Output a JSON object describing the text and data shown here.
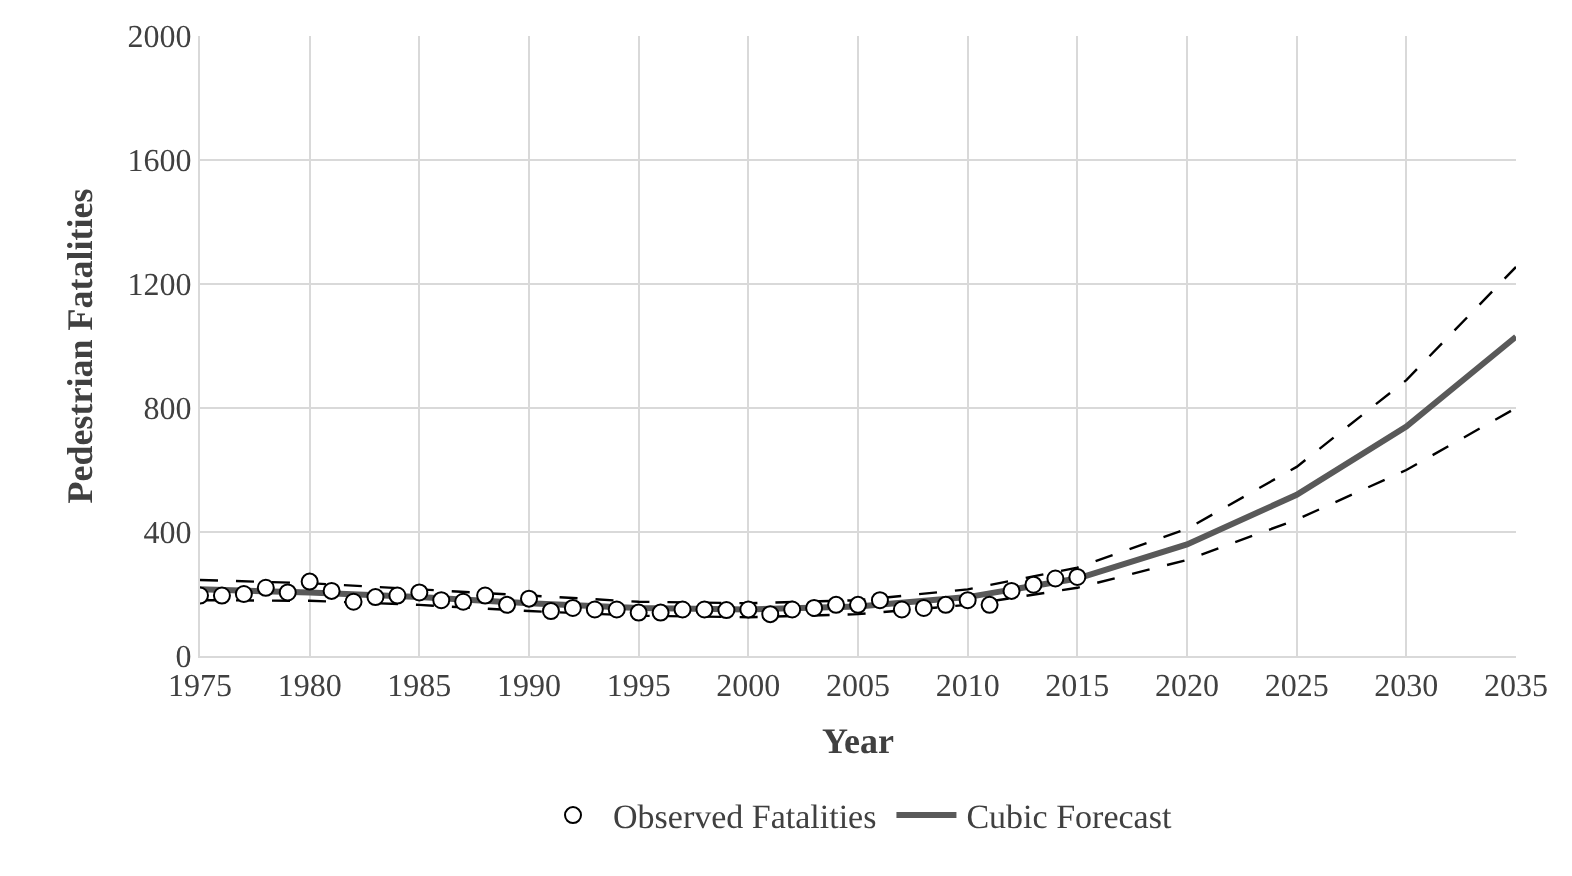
{
  "chart_data": {
    "type": "line",
    "xlabel": "Year",
    "ylabel": "Pedestrian Fatalities",
    "xlim": [
      1975,
      2035
    ],
    "xticks": [
      1975,
      1980,
      1985,
      1990,
      1995,
      2000,
      2005,
      2010,
      2015,
      2020,
      2025,
      2030,
      2035
    ],
    "ylim": [
      0,
      2000
    ],
    "yticks": [
      0,
      400,
      800,
      1200,
      1600,
      2000
    ],
    "grid": true,
    "legend": "bottom",
    "series": [
      {
        "name": "Observed Fatalities",
        "type": "scatter",
        "marker": "circle",
        "color": "#000000",
        "x": [
          1975,
          1976,
          1977,
          1978,
          1979,
          1980,
          1981,
          1982,
          1983,
          1984,
          1985,
          1986,
          1987,
          1988,
          1989,
          1990,
          1991,
          1992,
          1993,
          1994,
          1995,
          1996,
          1997,
          1998,
          1999,
          2000,
          2001,
          2002,
          2003,
          2004,
          2005,
          2006,
          2007,
          2008,
          2009,
          2010,
          2011,
          2012,
          2013,
          2014,
          2015
        ],
        "values": [
          195,
          195,
          200,
          220,
          205,
          240,
          210,
          175,
          190,
          195,
          205,
          180,
          175,
          195,
          165,
          185,
          145,
          155,
          150,
          150,
          140,
          140,
          150,
          150,
          148,
          150,
          135,
          150,
          155,
          165,
          165,
          180,
          150,
          155,
          165,
          180,
          165,
          210,
          230,
          250,
          255
        ]
      },
      {
        "name": "Cubic Forecast",
        "color": "#595959",
        "line_style": "solid",
        "x": [
          1975,
          1980,
          1985,
          1990,
          1995,
          2000,
          2005,
          2010,
          2015,
          2020,
          2025,
          2030,
          2035
        ],
        "values": [
          215,
          205,
          190,
          170,
          155,
          150,
          160,
          190,
          250,
          360,
          520,
          740,
          1030
        ]
      },
      {
        "color": "#000000",
        "line_style": "dashed",
        "x": [
          1975,
          1980,
          1985,
          1990,
          1995,
          2000,
          2005,
          2010,
          2015,
          2020,
          2025,
          2030,
          2035
        ],
        "values": [
          180,
          178,
          165,
          145,
          130,
          125,
          135,
          165,
          220,
          310,
          440,
          600,
          800
        ]
      },
      {
        "color": "#000000",
        "line_style": "dashed",
        "x": [
          1975,
          1980,
          1985,
          1990,
          1995,
          2000,
          2005,
          2010,
          2015,
          2020,
          2025,
          2030,
          2035
        ],
        "values": [
          245,
          235,
          215,
          195,
          175,
          170,
          180,
          215,
          285,
          410,
          610,
          890,
          1255
        ]
      }
    ]
  }
}
